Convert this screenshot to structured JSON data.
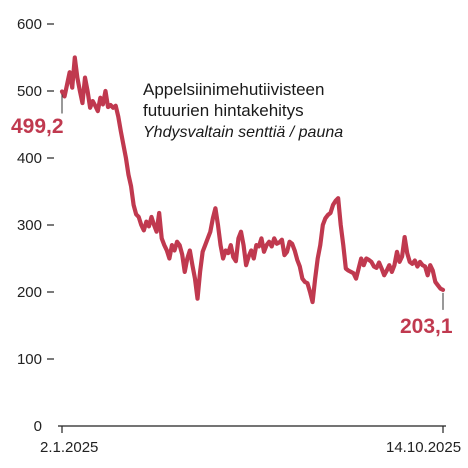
{
  "chart_data": {
    "type": "line",
    "title": "Appelsiinimehutiivisteen",
    "title_line2": "futuurien hintakehitys",
    "subtitle": "Yhdysvaltain senttiä / pauna",
    "xlabel": "",
    "ylabel": "",
    "ylim": [
      0,
      600
    ],
    "yticks": [
      0,
      100,
      200,
      300,
      400,
      500,
      600
    ],
    "ytick_labels": [
      "0",
      "100",
      "200",
      "300",
      "400",
      "500",
      "600"
    ],
    "x_tick_labels": [
      "2.1.2025",
      "14.10.2025"
    ],
    "line_color": "#c0394f",
    "start_label": "499,2",
    "end_label": "203,1",
    "series": [
      {
        "values": [
          499.2,
          492,
          510,
          528,
          505,
          550,
          520,
          500,
          482,
          520,
          500,
          475,
          485,
          478,
          470,
          490,
          480,
          500,
          476,
          479,
          475,
          478,
          462,
          440,
          420,
          400,
          375,
          358,
          330,
          316,
          312,
          300,
          292,
          305,
          298,
          312,
          300,
          290,
          318,
          280,
          270,
          262,
          250,
          270,
          262,
          275,
          270,
          256,
          230,
          250,
          262,
          240,
          220,
          190,
          230,
          260,
          270,
          280,
          290,
          310,
          325,
          300,
          270,
          250,
          262,
          258,
          270,
          252,
          246,
          280,
          290,
          270,
          240,
          253,
          262,
          250,
          270,
          268,
          280,
          260,
          270,
          275,
          268,
          280,
          272,
          274,
          278,
          255,
          260,
          275,
          272,
          262,
          248,
          238,
          220,
          215,
          213,
          200,
          185,
          220,
          250,
          270,
          300,
          310,
          315,
          318,
          330,
          336,
          340,
          300,
          270,
          235,
          232,
          230,
          228,
          220,
          235,
          250,
          240,
          250,
          248,
          245,
          238,
          236,
          244,
          235,
          225,
          232,
          240,
          230,
          240,
          260,
          245,
          253,
          282,
          258,
          245,
          242,
          247,
          238,
          245,
          240,
          238,
          225,
          240,
          232,
          215,
          210,
          205,
          203.1
        ]
      }
    ]
  }
}
